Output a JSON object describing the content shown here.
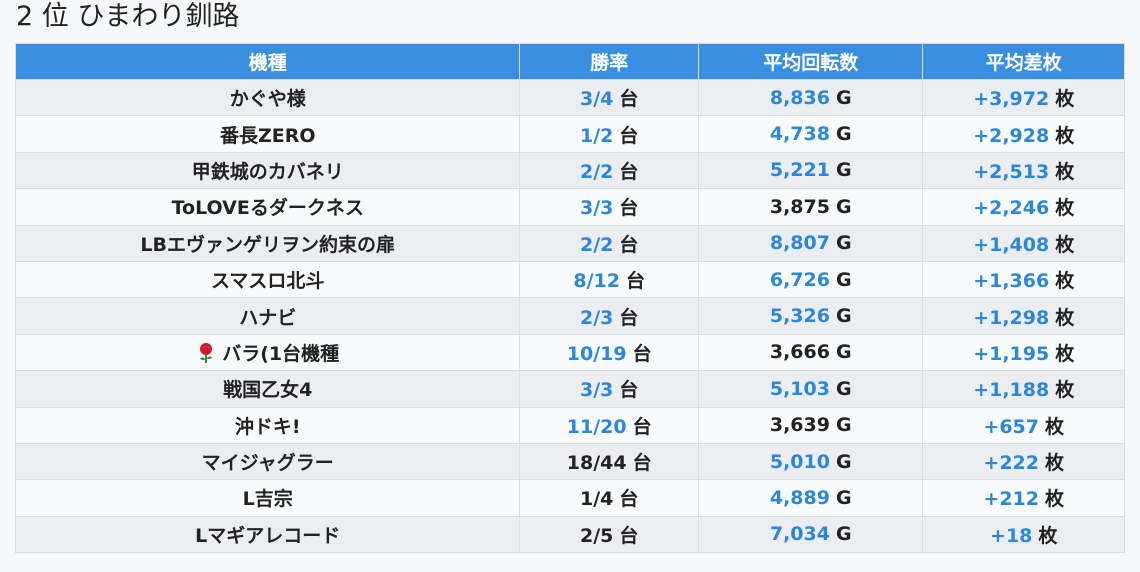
{
  "title": "2 位 ひまわり釧路",
  "columns": [
    "機種",
    "勝率",
    "平均回転数",
    "平均差枚"
  ],
  "rows": [
    {
      "name": "かぐや様",
      "icon": "",
      "win": "3/4",
      "win_color": "#2b87db",
      "unit_win": "台",
      "spins": "8,836",
      "spins_color": "#2b87db",
      "unit_spins": "G",
      "diff": "+3,972",
      "unit_diff": "枚"
    },
    {
      "name": "番長ZERO",
      "icon": "",
      "win": "1/2",
      "win_color": "#2b87db",
      "unit_win": "台",
      "spins": "4,738",
      "spins_color": "#2b87db",
      "unit_spins": "G",
      "diff": "+2,928",
      "unit_diff": "枚"
    },
    {
      "name": "甲鉄城のカバネリ",
      "icon": "",
      "win": "2/2",
      "win_color": "#2b87db",
      "unit_win": "台",
      "spins": "5,221",
      "spins_color": "#2b87db",
      "unit_spins": "G",
      "diff": "+2,513",
      "unit_diff": "枚"
    },
    {
      "name": "ToLOVEるダークネス",
      "icon": "",
      "win": "3/3",
      "win_color": "#2b87db",
      "unit_win": "台",
      "spins": "3,875",
      "spins_color": "#222222",
      "unit_spins": "G",
      "diff": "+2,246",
      "unit_diff": "枚"
    },
    {
      "name": "LBエヴァンゲリヲン約束の扉",
      "icon": "",
      "win": "2/2",
      "win_color": "#2b87db",
      "unit_win": "台",
      "spins": "8,807",
      "spins_color": "#2b87db",
      "unit_spins": "G",
      "diff": "+1,408",
      "unit_diff": "枚"
    },
    {
      "name": "スマスロ北斗",
      "icon": "",
      "win": "8/12",
      "win_color": "#2b87db",
      "unit_win": "台",
      "spins": "6,726",
      "spins_color": "#2b87db",
      "unit_spins": "G",
      "diff": "+1,366",
      "unit_diff": "枚"
    },
    {
      "name": "ハナビ",
      "icon": "",
      "win": "2/3",
      "win_color": "#2b87db",
      "unit_win": "台",
      "spins": "5,326",
      "spins_color": "#2b87db",
      "unit_spins": "G",
      "diff": "+1,298",
      "unit_diff": "枚"
    },
    {
      "name": "バラ(1台機種",
      "icon": "rose-icon",
      "win": "10/19",
      "win_color": "#2b87db",
      "unit_win": "台",
      "spins": "3,666",
      "spins_color": "#222222",
      "unit_spins": "G",
      "diff": "+1,195",
      "unit_diff": "枚"
    },
    {
      "name": "戦国乙女4",
      "icon": "",
      "win": "3/3",
      "win_color": "#2b87db",
      "unit_win": "台",
      "spins": "5,103",
      "spins_color": "#2b87db",
      "unit_spins": "G",
      "diff": "+1,188",
      "unit_diff": "枚"
    },
    {
      "name": "沖ドキ!",
      "icon": "",
      "win": "11/20",
      "win_color": "#2b87db",
      "unit_win": "台",
      "spins": "3,639",
      "spins_color": "#222222",
      "unit_spins": "G",
      "diff": "+657",
      "unit_diff": "枚"
    },
    {
      "name": "マイジャグラー",
      "icon": "",
      "win": "18/44",
      "win_color": "#222222",
      "unit_win": "台",
      "spins": "5,010",
      "spins_color": "#2b87db",
      "unit_spins": "G",
      "diff": "+222",
      "unit_diff": "枚"
    },
    {
      "name": "L吉宗",
      "icon": "",
      "win": "1/4",
      "win_color": "#222222",
      "unit_win": "台",
      "spins": "4,889",
      "spins_color": "#2b87db",
      "unit_spins": "G",
      "diff": "+212",
      "unit_diff": "枚"
    },
    {
      "name": "Lマギアレコード",
      "icon": "",
      "win": "2/5",
      "win_color": "#222222",
      "unit_win": "台",
      "spins": "7,034",
      "spins_color": "#2b87db",
      "unit_spins": "G",
      "diff": "+18",
      "unit_diff": "枚"
    }
  ],
  "colors": {
    "header_bg": "#3a8ee0",
    "accent_blue": "#2b87db",
    "text": "#222222",
    "row_odd": "#ebedf0",
    "row_even": "#f9fafb"
  }
}
